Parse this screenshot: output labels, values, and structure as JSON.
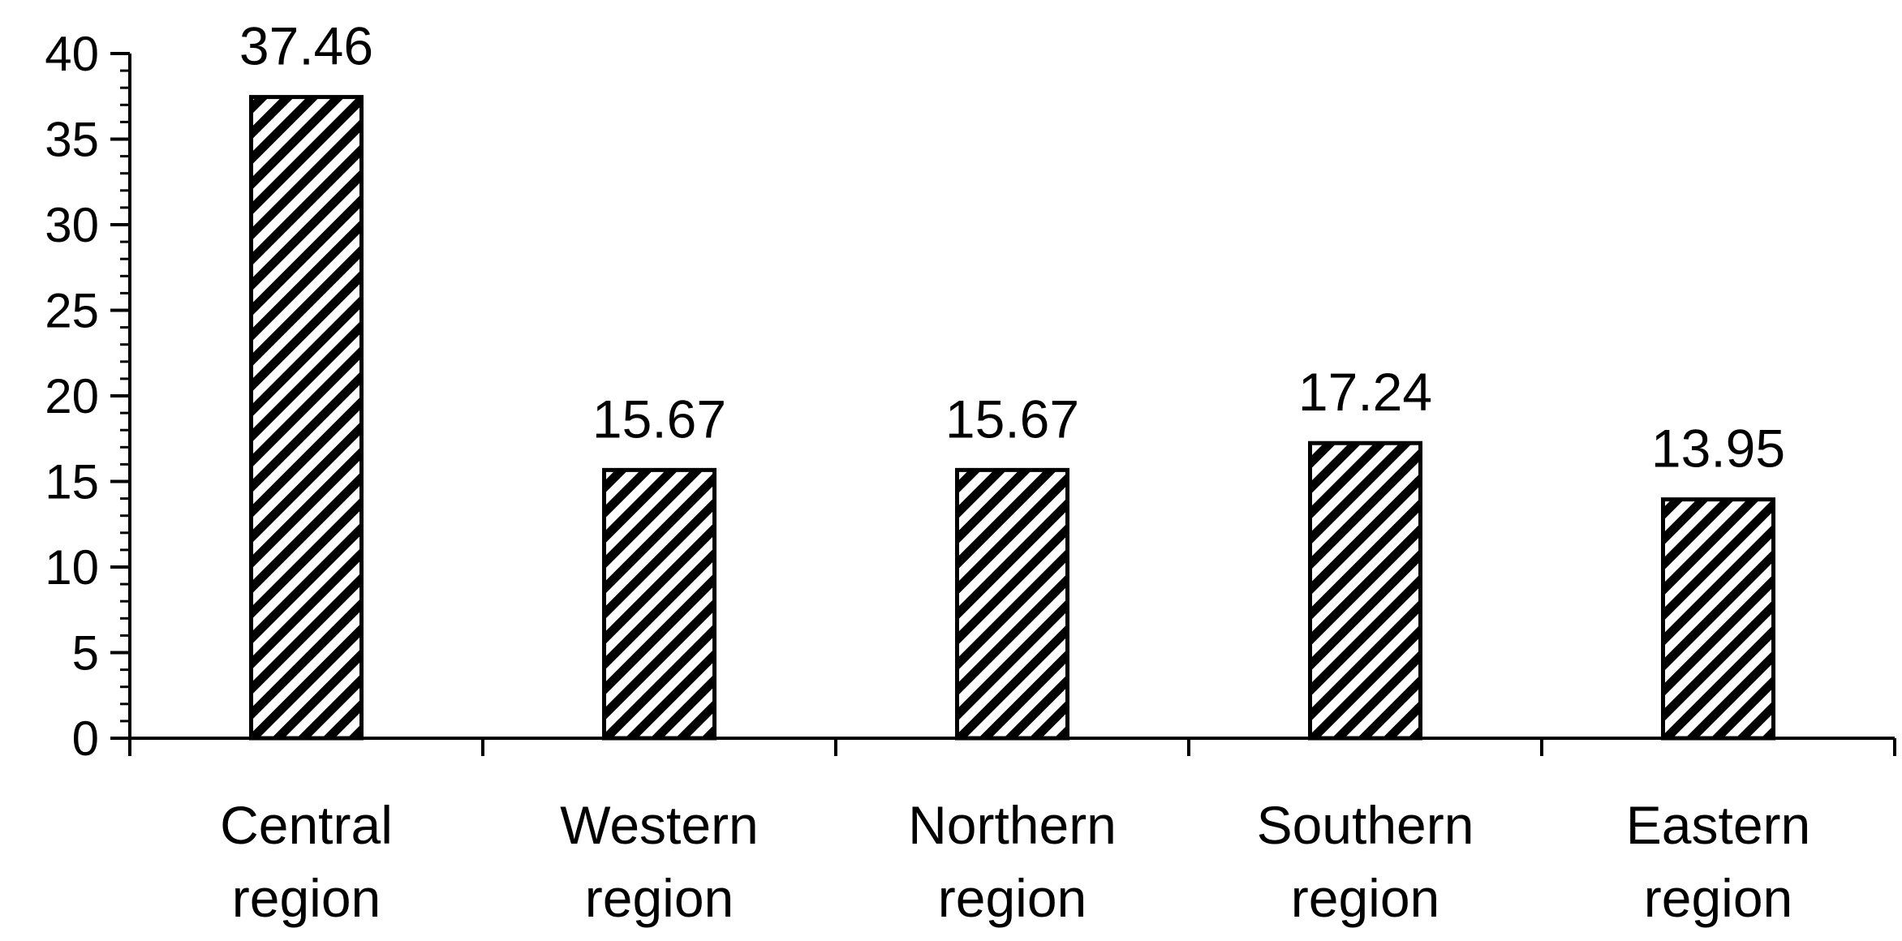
{
  "chart_data": {
    "type": "bar",
    "title": "",
    "xlabel": "",
    "ylabel": "",
    "categories": [
      [
        "Central",
        "region"
      ],
      [
        "Western",
        "region"
      ],
      [
        "Northern",
        "region"
      ],
      [
        "Southern",
        "region"
      ],
      [
        "Eastern",
        "region"
      ]
    ],
    "values": [
      37.46,
      15.67,
      15.67,
      17.24,
      13.95
    ],
    "data_labels": [
      "37.46",
      "15.67",
      "15.67",
      "17.24",
      "13.95"
    ],
    "ylim": [
      0,
      40
    ],
    "y_major_ticks": [
      "0",
      "5",
      "10",
      "15",
      "20",
      "25",
      "30",
      "35",
      "40"
    ],
    "y_tick_values": [
      0,
      5,
      10,
      15,
      20,
      25,
      30,
      35,
      40
    ],
    "y_minor_step": 1,
    "grid": false,
    "legend": "none",
    "bar_fill": "diagonal-hatch",
    "colors": {
      "bar_stroke": "#000000",
      "hatch": "#000000",
      "background": "#ffffff",
      "axis": "#000000"
    }
  }
}
